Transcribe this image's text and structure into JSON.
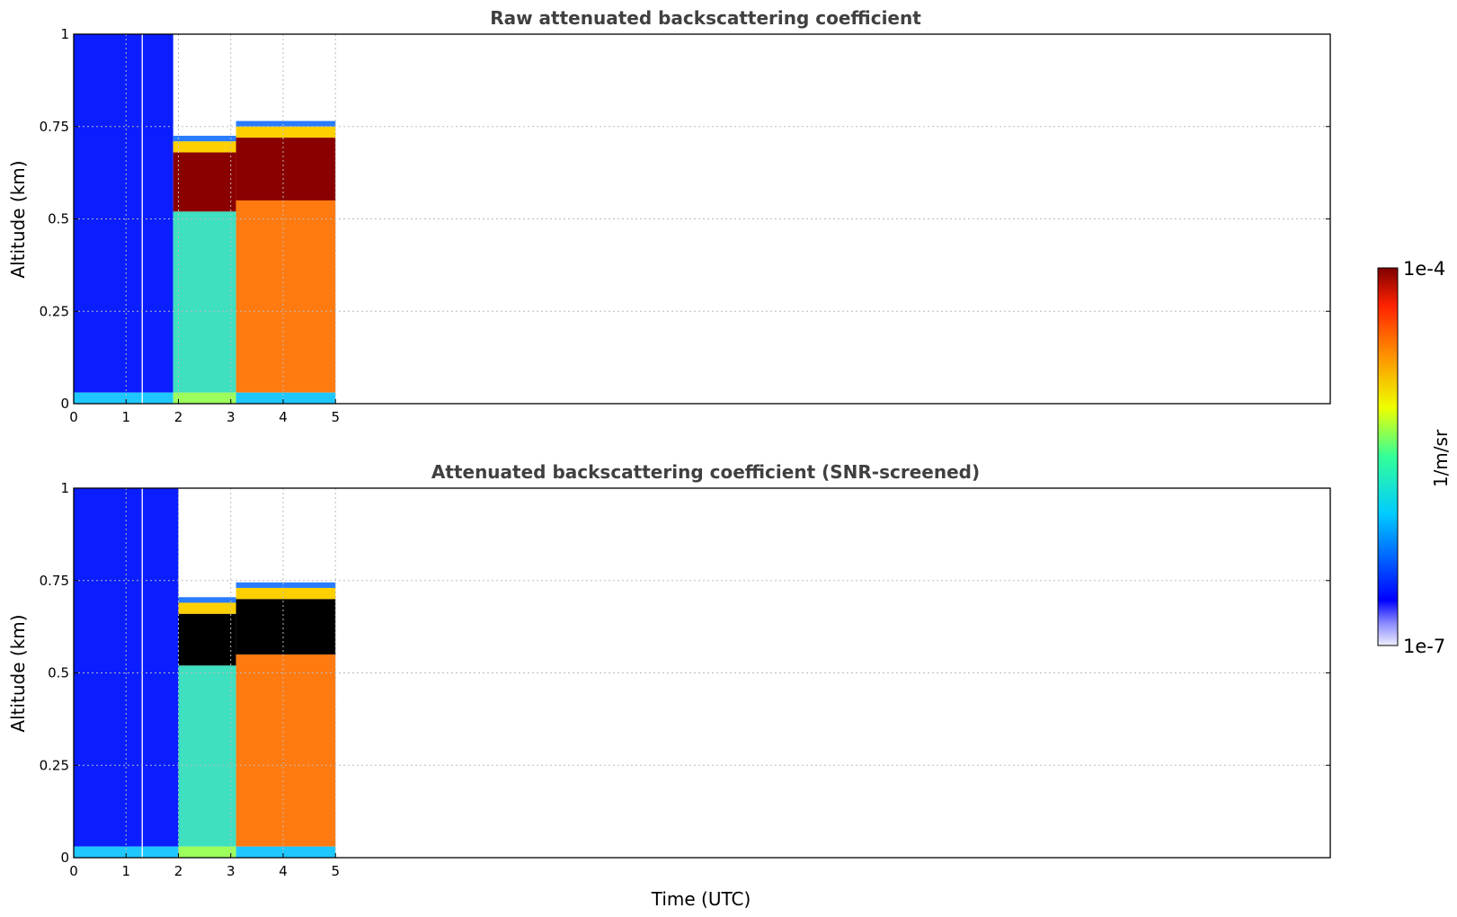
{
  "figure": {
    "xlabel_shared": "Time (UTC)"
  },
  "colorbar": {
    "label": "1/m/sr",
    "max_label": "1e-4",
    "min_label": "1e-7",
    "colormap": "jet",
    "scale": "log",
    "placement": "right"
  },
  "chart_data": [
    {
      "type": "heatmap",
      "title": "Raw attenuated backscattering coefficient",
      "xlabel": "",
      "ylabel": "Altitude (km)",
      "xlim": [
        0,
        24
      ],
      "ylim": [
        0,
        1
      ],
      "x_ticks": [
        "0",
        "1",
        "2",
        "3",
        "4",
        "5"
      ],
      "y_ticks": [
        "0",
        "0.25",
        "0.5",
        "0.75",
        "1"
      ],
      "grid": true,
      "data_extent_time_utc": [
        0,
        5
      ],
      "colorbar_range": [
        1e-07,
        0.0001
      ],
      "segments": [
        {
          "t_start": 0.0,
          "t_end": 1.3,
          "surface_level": "cyan",
          "bulk_level": "blue",
          "top_level": "blue speckle"
        },
        {
          "t_start": 1.3,
          "t_end": 1.32,
          "surface_level": "white",
          "bulk_level": "white",
          "top_level": "white"
        },
        {
          "t_start": 1.32,
          "t_end": 1.9,
          "surface_level": "cyan",
          "bulk_level": "blue",
          "top_level": "blue speckle"
        },
        {
          "t_start": 1.9,
          "t_end": 3.1,
          "surface_level": "green",
          "bulk_level": "cyan-green",
          "layer_top_km": 0.68,
          "layer_base_km": 0.52,
          "layer_level": "dark red"
        },
        {
          "t_start": 3.1,
          "t_end": 5.0,
          "surface_level": "cyan",
          "bulk_level": "orange",
          "layer_top_km": 0.72,
          "layer_base_km": 0.55,
          "layer_level": "dark red"
        }
      ]
    },
    {
      "type": "heatmap",
      "title": "Attenuated backscattering coefficient (SNR-screened)",
      "xlabel": "Time (UTC)",
      "ylabel": "Altitude (km)",
      "xlim": [
        0,
        24
      ],
      "ylim": [
        0,
        1
      ],
      "x_ticks": [
        "0",
        "1",
        "2",
        "3",
        "4",
        "5"
      ],
      "y_ticks": [
        "0",
        "0.25",
        "0.5",
        "0.75",
        "1"
      ],
      "grid": true,
      "data_extent_time_utc": [
        0,
        5
      ],
      "colorbar_range": [
        1e-07,
        0.0001
      ],
      "segments": [
        {
          "t_start": 0.0,
          "t_end": 1.3,
          "surface_level": "cyan",
          "bulk_level": "blue",
          "top_level": "blue with white gaps"
        },
        {
          "t_start": 1.3,
          "t_end": 1.32,
          "surface_level": "white",
          "bulk_level": "white",
          "top_level": "white"
        },
        {
          "t_start": 1.32,
          "t_end": 2.0,
          "surface_level": "cyan",
          "bulk_level": "blue",
          "top_level": "blue"
        },
        {
          "t_start": 2.0,
          "t_end": 3.1,
          "surface_level": "green",
          "bulk_level": "cyan-green",
          "layer_top_km": 0.66,
          "layer_base_km": 0.52,
          "layer_level": "black (screened)"
        },
        {
          "t_start": 3.1,
          "t_end": 5.0,
          "surface_level": "cyan",
          "bulk_level": "orange",
          "layer_top_km": 0.7,
          "layer_base_km": 0.55,
          "layer_level": "black (screened)"
        }
      ]
    }
  ]
}
